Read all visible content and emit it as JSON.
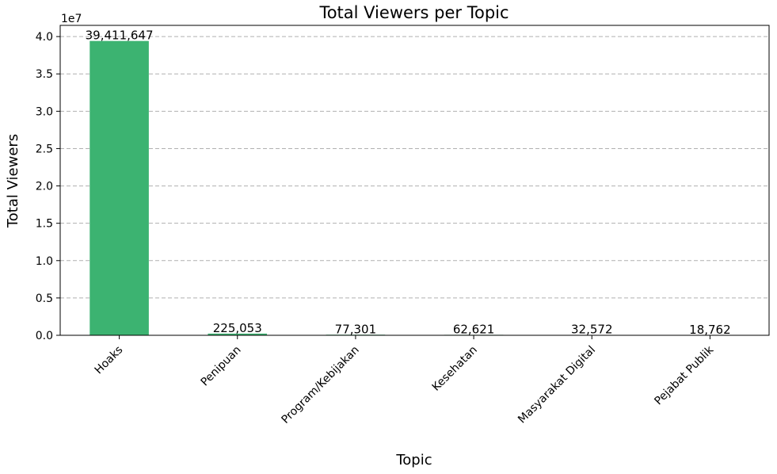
{
  "chart_data": {
    "type": "bar",
    "title": "Total Viewers per Topic",
    "xlabel": "Topic",
    "ylabel": "Total Viewers",
    "y_offset_text": "1e7",
    "y_scale": 10000000,
    "ylim": [
      0,
      41500000
    ],
    "y_ticks": [
      0,
      5000000,
      10000000,
      15000000,
      20000000,
      25000000,
      30000000,
      35000000,
      40000000
    ],
    "y_tick_labels": [
      "0.0",
      "0.5",
      "1.0",
      "1.5",
      "2.0",
      "2.5",
      "3.0",
      "3.5",
      "4.0"
    ],
    "categories": [
      "Hoaks",
      "Penipuan",
      "Program/Kebijakan",
      "Kesehatan",
      "Masyarakat Digital",
      "Pejabat Publik"
    ],
    "values": [
      39411647,
      225053,
      77301,
      62621,
      32572,
      18762
    ],
    "data_labels": [
      "39,411,647",
      "225,053",
      "77,301",
      "62,621",
      "32,572",
      "18,762"
    ],
    "bar_color": "#3cb371",
    "grid": "y-dashed",
    "legend": "none"
  }
}
